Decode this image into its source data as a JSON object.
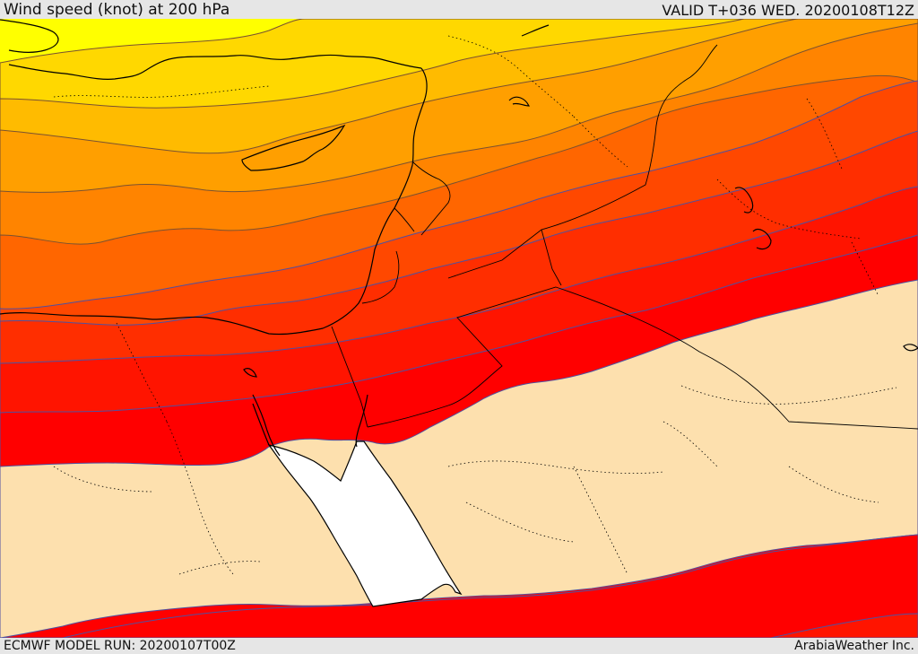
{
  "header": {
    "title": "Wind speed (knot) at 200 hPa",
    "valid": "VALID T+036 WED. 20200108T12Z"
  },
  "footer": {
    "model_run": "ECMWF MODEL RUN: 20200107T00Z",
    "credit": "ArabiaWeather Inc."
  },
  "colors": {
    "band_lowest": "#ffff00",
    "band_2": "#ffd800",
    "band_3": "#ffbb00",
    "band_4": "#ff9f00",
    "band_5": "#ff8400",
    "band_6": "#ff6600",
    "band_7": "#ff4800",
    "band_8": "#ff2e00",
    "band_9": "#ff1400",
    "band_strongest": "#ff0000",
    "calm_area": "#fde0ae",
    "sea": "#ffffff"
  }
}
